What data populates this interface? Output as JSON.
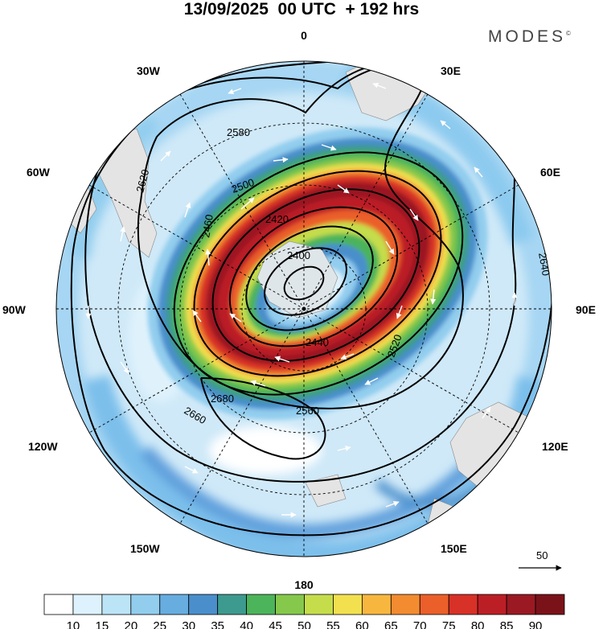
{
  "header": {
    "title": "13/09/2025  00 UTC  + 192 hrs",
    "brand": "MODES",
    "brand_mark": "©"
  },
  "map": {
    "projection": "polar stereographic, south pole centered",
    "longitude_labels": [
      "0",
      "30E",
      "60E",
      "90E",
      "120E",
      "150E",
      "180",
      "150W",
      "120W",
      "90W",
      "60W",
      "30W"
    ],
    "contour_labels": [
      "2400",
      "2420",
      "2440",
      "2460",
      "2500",
      "2520",
      "2560",
      "2580",
      "2620",
      "2640",
      "2660",
      "2680"
    ],
    "wind_reference": {
      "value": "50"
    }
  },
  "colorbar": {
    "ticks": [
      "10",
      "15",
      "20",
      "25",
      "30",
      "35",
      "40",
      "45",
      "50",
      "55",
      "60",
      "65",
      "70",
      "75",
      "80",
      "85",
      "90"
    ],
    "colors": [
      "#ffffff",
      "#ddf2fc",
      "#bce4f7",
      "#92cdee",
      "#67ade0",
      "#4a8fcc",
      "#3d9a8f",
      "#4cb45a",
      "#85c84b",
      "#c5dd4b",
      "#f3e04f",
      "#f7b73f",
      "#f38b30",
      "#eb5f2a",
      "#d83127",
      "#bc1e26",
      "#9a1923",
      "#7a1319"
    ]
  }
}
